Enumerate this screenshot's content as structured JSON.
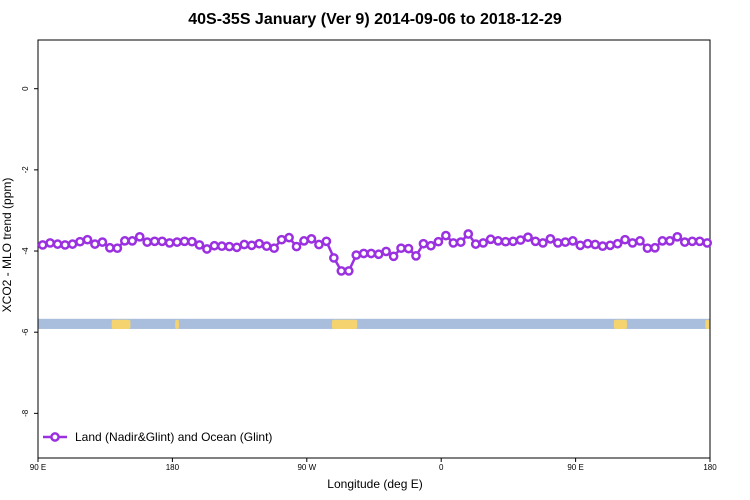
{
  "chart_data": {
    "type": "line",
    "title": "40S-35S January (Ver 9)   2014-09-06 to 2018-12-29",
    "xlabel": "Longitude (deg E)",
    "ylabel": "XCO2 - MLO trend (ppm)",
    "xlim": [
      90,
      450
    ],
    "ylim": [
      -9.1,
      1.2
    ],
    "x_ticks": [
      {
        "value": 90,
        "label": "90 E"
      },
      {
        "value": 162,
        "label": "180"
      },
      {
        "value": 234,
        "label": "90 W"
      },
      {
        "value": 306,
        "label": "0"
      },
      {
        "value": 378,
        "label": "90 E"
      },
      {
        "value": 450,
        "label": "180"
      }
    ],
    "y_ticks": [
      {
        "value": 0,
        "label": "0"
      },
      {
        "value": -2,
        "label": "-2"
      },
      {
        "value": -4,
        "label": "-4"
      },
      {
        "value": -6,
        "label": "-6"
      },
      {
        "value": -8,
        "label": "-8"
      }
    ],
    "grid": false,
    "legend_position": "bottom-left",
    "series": [
      {
        "name": "Land (Nadir&Glint) and Ocean (Glint)",
        "color": "#9b30e0",
        "marker": "open-circle",
        "x": [
          92.5,
          96.5,
          100.5,
          104.5,
          108.5,
          112.5,
          116.5,
          120.5,
          124.5,
          128.5,
          132.5,
          136.5,
          140.5,
          144.5,
          148.5,
          152.5,
          156.5,
          160.5,
          164.5,
          168.5,
          172.5,
          176.5,
          180.5,
          184.5,
          188.5,
          192.5,
          196.5,
          200.5,
          204.5,
          208.5,
          212.5,
          216.5,
          220.5,
          224.5,
          228.5,
          232.5,
          236.5,
          240.5,
          244.5,
          248.5,
          252.5,
          256.5,
          260.5,
          264.5,
          268.5,
          272.5,
          276.5,
          280.5,
          284.5,
          288.5,
          292.5,
          296.5,
          300.5,
          304.5,
          308.5,
          312.5,
          316.5,
          320.5,
          324.5,
          328.5,
          332.5,
          336.5,
          340.5,
          344.5,
          348.5,
          352.5,
          356.5,
          360.5,
          364.5,
          368.5,
          372.5,
          376.5,
          380.5,
          384.5,
          388.5,
          392.5,
          396.5,
          400.5,
          404.5,
          408.5,
          412.5,
          416.5,
          420.5,
          424.5,
          428.5,
          432.5,
          436.5,
          440.5,
          444.5,
          448.5
        ],
        "y": [
          -3.85,
          -3.8,
          -3.83,
          -3.85,
          -3.83,
          -3.77,
          -3.72,
          -3.83,
          -3.78,
          -3.92,
          -3.93,
          -3.75,
          -3.75,
          -3.65,
          -3.78,
          -3.76,
          -3.76,
          -3.8,
          -3.78,
          -3.76,
          -3.77,
          -3.85,
          -3.95,
          -3.87,
          -3.88,
          -3.89,
          -3.91,
          -3.84,
          -3.86,
          -3.82,
          -3.88,
          -3.93,
          -3.72,
          -3.67,
          -3.89,
          -3.75,
          -3.7,
          -3.84,
          -3.76,
          -4.17,
          -4.49,
          -4.49,
          -4.1,
          -4.06,
          -4.06,
          -4.08,
          -4.01,
          -4.13,
          -3.93,
          -3.94,
          -4.12,
          -3.82,
          -3.87,
          -3.77,
          -3.62,
          -3.8,
          -3.78,
          -3.58,
          -3.83,
          -3.8,
          -3.71,
          -3.75,
          -3.77,
          -3.76,
          -3.73,
          -3.66,
          -3.76,
          -3.8,
          -3.7,
          -3.8,
          -3.78,
          -3.75,
          -3.86,
          -3.82,
          -3.84,
          -3.88,
          -3.86,
          -3.82,
          -3.72,
          -3.8,
          -3.75,
          -3.93,
          -3.92,
          -3.75,
          -3.75,
          -3.65,
          -3.78,
          -3.76,
          -3.76,
          -3.8
        ]
      }
    ],
    "land_ocean_strip": {
      "y_range": [
        -5.92,
        -5.67
      ],
      "ocean_color": "#a9bedd",
      "land_color": "#f5d46f",
      "land_x_ranges": [
        [
          129.5,
          139.5
        ],
        [
          163.5,
          165.5
        ],
        [
          247.5,
          261
        ],
        [
          398.5,
          405.5
        ],
        [
          447.5,
          450
        ]
      ]
    }
  }
}
